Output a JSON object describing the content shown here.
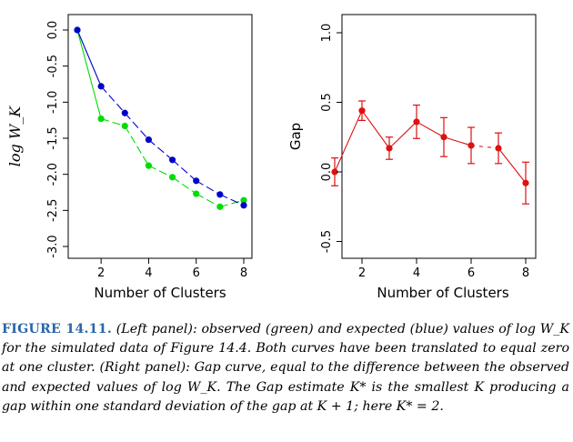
{
  "chart_data": [
    {
      "type": "line",
      "panel": "left",
      "xlabel": "Number of Clusters",
      "ylabel": "log W_K",
      "xlim": [
        1,
        8
      ],
      "ylim": [
        -3.0,
        0.0
      ],
      "xticks": [
        2,
        4,
        6,
        8
      ],
      "xtick_labels": [
        "2",
        "4",
        "6",
        "8"
      ],
      "yticks": [
        0.0,
        -0.5,
        -1.0,
        -1.5,
        -2.0,
        -2.5,
        -3.0
      ],
      "ytick_labels": [
        "0.0",
        "-0.5",
        "-1.0",
        "-1.5",
        "-2.0",
        "-2.5",
        "-3.0"
      ],
      "x": [
        1,
        2,
        3,
        4,
        5,
        6,
        7,
        8
      ],
      "series": [
        {
          "name": "observed",
          "color": "#00dd00",
          "values": [
            0.0,
            -1.23,
            -1.33,
            -1.88,
            -2.04,
            -2.27,
            -2.45,
            -2.36
          ]
        },
        {
          "name": "expected",
          "color": "#0000cc",
          "values": [
            0.0,
            -0.78,
            -1.15,
            -1.52,
            -1.8,
            -2.09,
            -2.28,
            -2.43
          ]
        }
      ]
    },
    {
      "type": "line",
      "panel": "right",
      "xlabel": "Number of Clusters",
      "ylabel": "Gap",
      "xlim": [
        1,
        8
      ],
      "ylim": [
        -0.5,
        1.0
      ],
      "xticks": [
        2,
        4,
        6,
        8
      ],
      "xtick_labels": [
        "2",
        "4",
        "6",
        "8"
      ],
      "yticks": [
        -0.5,
        0.0,
        0.5,
        1.0
      ],
      "ytick_labels": [
        "-0.5",
        "0.0",
        "0.5",
        "1.0"
      ],
      "x": [
        1,
        2,
        3,
        4,
        5,
        6,
        7,
        8
      ],
      "series": [
        {
          "name": "Gap",
          "color": "#dd1111",
          "values": [
            0.0,
            0.44,
            0.17,
            0.36,
            0.25,
            0.19,
            0.17,
            -0.08
          ],
          "errors": [
            0.1,
            0.07,
            0.08,
            0.12,
            0.14,
            0.13,
            0.11,
            0.15
          ]
        }
      ]
    }
  ],
  "caption": {
    "label": "FIGURE 14.11.",
    "text": "(Left panel): observed (green) and expected (blue) values of log W_K for the simulated data of Figure 14.4. Both curves have been translated to equal zero at one cluster. (Right panel): Gap curve, equal to the difference between the observed and expected values of log W_K. The Gap estimate K* is the smallest K producing a gap within one standard deviation of the gap at K + 1; here K* = 2."
  }
}
